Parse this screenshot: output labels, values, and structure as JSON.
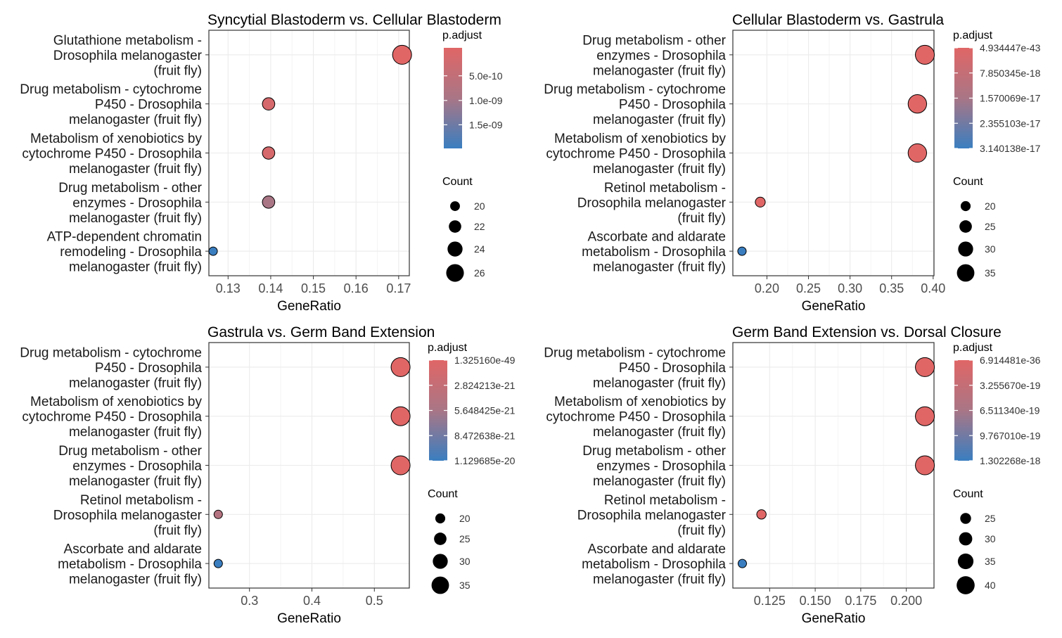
{
  "chart_data": [
    {
      "type": "scatter",
      "title": "Syncytial Blastoderm vs. Cellular Blastoderm",
      "xlabel": "GeneRatio",
      "ylabel": "",
      "xlim": [
        0.1255,
        0.1725
      ],
      "xticks": [
        0.13,
        0.14,
        0.15,
        0.16,
        0.17
      ],
      "xtick_labels": [
        "0.13",
        "0.14",
        "0.15",
        "0.16",
        "0.17"
      ],
      "categories": [
        [
          "Glutathione metabolism -",
          "Drosophila melanogaster",
          "(fruit fly)"
        ],
        [
          "Drug metabolism - cytochrome",
          "P450 - Drosophila",
          "melanogaster (fruit fly)"
        ],
        [
          "Metabolism of xenobiotics by",
          "cytochrome P450 - Drosophila",
          "melanogaster (fruit fly)"
        ],
        [
          "Drug metabolism - other",
          "enzymes - Drosophila",
          "melanogaster (fruit fly)"
        ],
        [
          "ATP-dependent chromatin",
          "remodeling - Drosophila",
          "melanogaster (fruit fly)"
        ]
      ],
      "points": [
        {
          "x": 0.1708,
          "count": 27,
          "color_t": 0.0
        },
        {
          "x": 0.1395,
          "count": 22,
          "color_t": 0.1
        },
        {
          "x": 0.1395,
          "count": 22,
          "color_t": 0.1
        },
        {
          "x": 0.1395,
          "count": 22,
          "color_t": 0.5
        },
        {
          "x": 0.1265,
          "count": 19,
          "color_t": 1.0
        }
      ],
      "size_range": [
        19,
        27
      ],
      "radius_range": [
        6,
        13.5
      ],
      "color_legend": {
        "title": "p.adjust",
        "labels": [
          "5.0e-10",
          "1.0e-09",
          "1.5e-09"
        ],
        "positions": [
          0.278,
          0.523,
          0.765
        ]
      },
      "size_legend": {
        "title": "Count",
        "labels": [
          "20",
          "22",
          "24",
          "26"
        ],
        "values": [
          20,
          22,
          24,
          26
        ]
      }
    },
    {
      "type": "scatter",
      "title": "Cellular Blastoderm vs. Gastrula",
      "xlabel": "GeneRatio",
      "ylabel": "",
      "xlim": [
        0.159,
        0.401
      ],
      "xticks": [
        0.2,
        0.25,
        0.3,
        0.35,
        0.4
      ],
      "xtick_labels": [
        "0.20",
        "0.25",
        "0.30",
        "0.35",
        "0.40"
      ],
      "categories": [
        [
          "Drug metabolism - other",
          "enzymes - Drosophila",
          "melanogaster (fruit fly)"
        ],
        [
          "Drug metabolism - cytochrome",
          "P450 - Drosophila",
          "melanogaster (fruit fly)"
        ],
        [
          "Metabolism of xenobiotics by",
          "cytochrome P450 - Drosophila",
          "melanogaster (fruit fly)"
        ],
        [
          "Retinol metabolism -",
          "Drosophila melanogaster",
          "(fruit fly)"
        ],
        [
          "Ascorbate and aldarate",
          "metabolism - Drosophila",
          "melanogaster (fruit fly)"
        ]
      ],
      "points": [
        {
          "x": 0.39,
          "count": 38,
          "color_t": 0.0
        },
        {
          "x": 0.381,
          "count": 37,
          "color_t": 0.0
        },
        {
          "x": 0.381,
          "count": 37,
          "color_t": 0.0
        },
        {
          "x": 0.192,
          "count": 20,
          "color_t": 0.0
        },
        {
          "x": 0.17,
          "count": 17,
          "color_t": 1.0
        }
      ],
      "size_range": [
        17,
        38
      ],
      "radius_range": [
        6,
        13.5
      ],
      "color_legend": {
        "title": "p.adjust",
        "labels": [
          "4.934447e-43",
          "7.850345e-18",
          "1.570069e-17",
          "2.355103e-17",
          "3.140138e-17"
        ],
        "positions": [
          0.0,
          0.25,
          0.5,
          0.75,
          1.0
        ]
      },
      "size_legend": {
        "title": "Count",
        "labels": [
          "20",
          "25",
          "30",
          "35"
        ],
        "values": [
          20,
          25,
          30,
          35
        ]
      }
    },
    {
      "type": "scatter",
      "title": "Gastrula vs. Germ Band Extension",
      "xlabel": "GeneRatio",
      "ylabel": "",
      "xlim": [
        0.235,
        0.556
      ],
      "xticks": [
        0.3,
        0.4,
        0.5
      ],
      "xtick_labels": [
        "0.3",
        "0.4",
        "0.5"
      ],
      "categories": [
        [
          "Drug metabolism - cytochrome",
          "P450 - Drosophila",
          "melanogaster (fruit fly)"
        ],
        [
          "Metabolism of xenobiotics by",
          "cytochrome P450 - Drosophila",
          "melanogaster (fruit fly)"
        ],
        [
          "Drug metabolism - other",
          "enzymes - Drosophila",
          "melanogaster (fruit fly)"
        ],
        [
          "Retinol metabolism -",
          "Drosophila melanogaster",
          "(fruit fly)"
        ],
        [
          "Ascorbate and aldarate",
          "metabolism - Drosophila",
          "melanogaster (fruit fly)"
        ]
      ],
      "points": [
        {
          "x": 0.542,
          "count": 38,
          "color_t": 0.0
        },
        {
          "x": 0.542,
          "count": 38,
          "color_t": 0.0
        },
        {
          "x": 0.542,
          "count": 38,
          "color_t": 0.0
        },
        {
          "x": 0.25,
          "count": 17,
          "color_t": 0.4
        },
        {
          "x": 0.25,
          "count": 17,
          "color_t": 1.0
        }
      ],
      "size_range": [
        17,
        38
      ],
      "radius_range": [
        6,
        13.5
      ],
      "color_legend": {
        "title": "p.adjust",
        "labels": [
          "1.325160e-49",
          "2.824213e-21",
          "5.648425e-21",
          "8.472638e-21",
          "1.129685e-20"
        ],
        "positions": [
          0.0,
          0.25,
          0.5,
          0.75,
          1.0
        ]
      },
      "size_legend": {
        "title": "Count",
        "labels": [
          "20",
          "25",
          "30",
          "35"
        ],
        "values": [
          20,
          25,
          30,
          35
        ]
      }
    },
    {
      "type": "scatter",
      "title": "Germ Band Extension vs. Dorsal Closure",
      "xlabel": "GeneRatio",
      "ylabel": "",
      "xlim": [
        0.1048,
        0.2152
      ],
      "xticks": [
        0.125,
        0.15,
        0.175,
        0.2
      ],
      "xtick_labels": [
        "0.125",
        "0.150",
        "0.175",
        "0.200"
      ],
      "categories": [
        [
          "Drug metabolism - cytochrome",
          "P450 - Drosophila",
          "melanogaster (fruit fly)"
        ],
        [
          "Metabolism of xenobiotics by",
          "cytochrome P450 - Drosophila",
          "melanogaster (fruit fly)"
        ],
        [
          "Drug metabolism - other",
          "enzymes - Drosophila",
          "melanogaster (fruit fly)"
        ],
        [
          "Retinol metabolism -",
          "Drosophila melanogaster",
          "(fruit fly)"
        ],
        [
          "Ascorbate and aldarate",
          "metabolism - Drosophila",
          "melanogaster (fruit fly)"
        ]
      ],
      "points": [
        {
          "x": 0.2102,
          "count": 42,
          "color_t": 0.0
        },
        {
          "x": 0.2102,
          "count": 42,
          "color_t": 0.0
        },
        {
          "x": 0.2102,
          "count": 42,
          "color_t": 0.0
        },
        {
          "x": 0.1205,
          "count": 22,
          "color_t": 0.0
        },
        {
          "x": 0.11,
          "count": 20,
          "color_t": 1.0
        }
      ],
      "size_range": [
        20,
        42
      ],
      "radius_range": [
        6,
        13.5
      ],
      "color_legend": {
        "title": "p.adjust",
        "labels": [
          "6.914481e-36",
          "3.255670e-19",
          "6.511340e-19",
          "9.767010e-19",
          "1.302268e-18"
        ],
        "positions": [
          0.0,
          0.25,
          0.5,
          0.75,
          1.0
        ]
      },
      "size_legend": {
        "title": "Count",
        "labels": [
          "25",
          "30",
          "35",
          "40"
        ],
        "values": [
          25,
          30,
          35,
          40
        ]
      }
    }
  ],
  "colors": {
    "high": "#E06666",
    "mid": "#A97686",
    "low": "#3A7EC0",
    "grid": "#EBEBEB",
    "panel_border": "#333333"
  }
}
